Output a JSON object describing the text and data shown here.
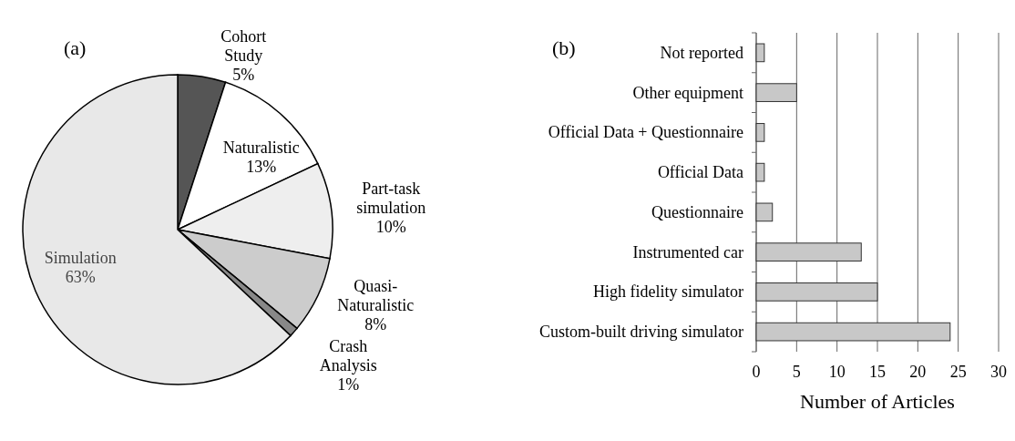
{
  "chart_data": [
    {
      "type": "pie",
      "title": "(a)",
      "categories": [
        "Cohort Study",
        "Naturalistic",
        "Part-task simulation",
        "Quasi-Naturalistic",
        "Crash Analysis",
        "Simulation"
      ],
      "values": [
        5,
        13,
        10,
        8,
        1,
        63
      ],
      "value_labels": [
        "5%",
        "13%",
        "10%",
        "8%",
        "1%",
        "63%"
      ],
      "colors": [
        "#555555",
        "#ffffff",
        "#eeeeee",
        "#cccccc",
        "#888888",
        "#e8e8e8"
      ]
    },
    {
      "type": "bar",
      "title": "(b)",
      "orientation": "horizontal",
      "categories": [
        "Not reported",
        "Other equipment",
        "Official Data + Questionnaire",
        "Official Data",
        "Questionnaire",
        "Instrumented car",
        "High fidelity simulator",
        "Custom-built driving simulator"
      ],
      "values": [
        1,
        5,
        1,
        1,
        2,
        13,
        15,
        24
      ],
      "color": "#c8c8c8",
      "xlim": [
        0,
        30
      ],
      "xticks": [
        0,
        5,
        10,
        15,
        20,
        25,
        30
      ],
      "xlabel": "Number of Articles",
      "grid": "x"
    }
  ]
}
